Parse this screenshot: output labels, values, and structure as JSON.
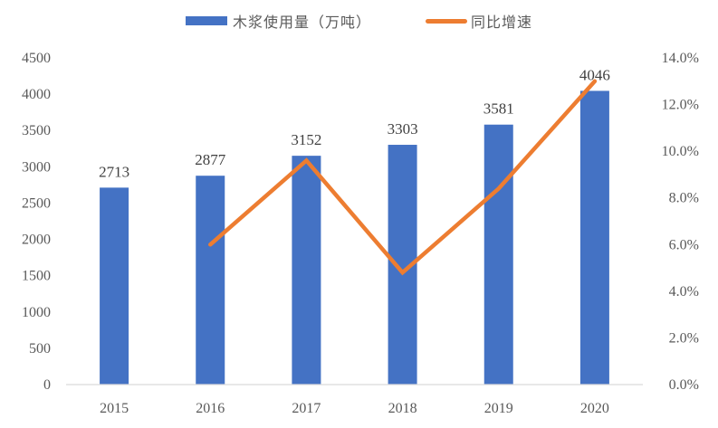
{
  "chart_data": {
    "type": "bar+line",
    "title": "",
    "categories": [
      "2015",
      "2016",
      "2017",
      "2018",
      "2019",
      "2020"
    ],
    "series": [
      {
        "name": "木浆使用量（万吨）",
        "type": "bar",
        "axis": "left",
        "color": "#4472C4",
        "values": [
          2713,
          2877,
          3152,
          3303,
          3581,
          4046
        ],
        "data_labels": [
          "2713",
          "2877",
          "3152",
          "3303",
          "3581",
          "4046"
        ]
      },
      {
        "name": "同比增速",
        "type": "line",
        "axis": "right",
        "color": "#ED7D31",
        "values": [
          null,
          6.0,
          9.6,
          4.8,
          8.4,
          13.0
        ],
        "unit": "%"
      }
    ],
    "left_axis": {
      "label": "",
      "ylim": [
        0,
        4500
      ],
      "ticks": [
        "0",
        "500",
        "1000",
        "1500",
        "2000",
        "2500",
        "3000",
        "3500",
        "4000",
        "4500"
      ]
    },
    "right_axis": {
      "label": "",
      "ylim": [
        0,
        14
      ],
      "ticks": [
        "0.0%",
        "2.0%",
        "4.0%",
        "6.0%",
        "8.0%",
        "10.0%",
        "12.0%",
        "14.0%"
      ]
    },
    "xlabel": "",
    "grid": false,
    "legend_position": "top"
  },
  "legend": {
    "bar_label": "木浆使用量（万吨）",
    "line_label": "同比增速"
  }
}
